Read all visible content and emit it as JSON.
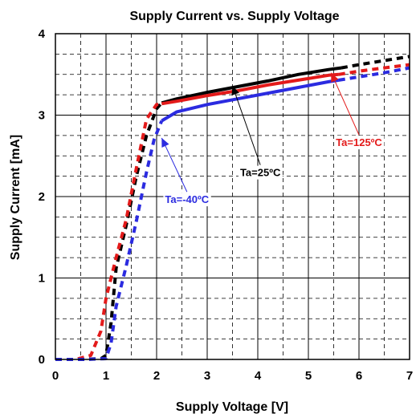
{
  "chart_data": {
    "type": "line",
    "title": "Supply Current vs. Supply Voltage",
    "xlabel": "Supply Voltage [V]",
    "ylabel": "Supply Current [mA]",
    "xlim": [
      0,
      7
    ],
    "ylim": [
      0,
      4
    ],
    "xticks": [
      "0",
      "1",
      "2",
      "3",
      "4",
      "5",
      "6",
      "7"
    ],
    "yticks": [
      "0",
      "1",
      "2",
      "3",
      "4"
    ],
    "grid": "major solid, minor dashed",
    "series": [
      {
        "name": "Ta=25ºC",
        "color": "#000000",
        "x": [
          0,
          0.5,
          0.9,
          1.0,
          1.1,
          1.2,
          1.4,
          1.6,
          1.8,
          2.0,
          2.1,
          2.4,
          3.0,
          3.6,
          4.2,
          4.8,
          5.4,
          5.65,
          6.0,
          6.5,
          7.0
        ],
        "y": [
          0.0,
          0.0,
          0.01,
          0.05,
          0.45,
          1.12,
          1.65,
          2.25,
          2.75,
          3.08,
          3.15,
          3.2,
          3.28,
          3.35,
          3.42,
          3.5,
          3.56,
          3.58,
          3.62,
          3.67,
          3.72
        ]
      },
      {
        "name": "Ta=125ºC",
        "color": "#e31a1a",
        "x": [
          0,
          0.4,
          0.7,
          0.9,
          1.0,
          1.2,
          1.4,
          1.6,
          1.8,
          2.0,
          2.4,
          3.0,
          3.6,
          4.2,
          4.8,
          5.4,
          5.6,
          6.0,
          6.5,
          7.0
        ],
        "y": [
          0.0,
          0.0,
          0.05,
          0.35,
          0.75,
          1.25,
          1.72,
          2.35,
          2.95,
          3.13,
          3.17,
          3.24,
          3.3,
          3.37,
          3.43,
          3.49,
          3.5,
          3.54,
          3.58,
          3.62
        ]
      },
      {
        "name": "Ta=-40ºC",
        "color": "#2b2be0",
        "x": [
          0,
          0.6,
          1.0,
          1.1,
          1.2,
          1.4,
          1.6,
          1.8,
          1.95,
          2.1,
          2.4,
          3.0,
          3.6,
          4.2,
          4.8,
          5.4,
          5.6,
          6.0,
          6.5,
          7.0
        ],
        "y": [
          0.0,
          0.0,
          0.01,
          0.2,
          0.65,
          1.15,
          1.7,
          2.3,
          2.7,
          2.93,
          3.04,
          3.13,
          3.2,
          3.27,
          3.34,
          3.41,
          3.43,
          3.47,
          3.52,
          3.58
        ]
      }
    ],
    "solid_until_x": [
      5.65,
      5.6,
      5.6
    ],
    "annotations": [
      {
        "text": "Ta=25ºC",
        "color": "#000000",
        "series": 0,
        "point_x": 3.5,
        "point_y": 3.36,
        "label_x": 4.05,
        "label_y": 2.25
      },
      {
        "text": "Ta=125ºC",
        "color": "#e31a1a",
        "series": 1,
        "point_x": 5.45,
        "point_y": 3.52,
        "label_x": 6.0,
        "label_y": 2.62
      },
      {
        "text": "Ta=-40ºC",
        "color": "#2b2be0",
        "series": 2,
        "point_x": 2.1,
        "point_y": 2.72,
        "label_x": 2.6,
        "label_y": 1.92
      }
    ]
  }
}
